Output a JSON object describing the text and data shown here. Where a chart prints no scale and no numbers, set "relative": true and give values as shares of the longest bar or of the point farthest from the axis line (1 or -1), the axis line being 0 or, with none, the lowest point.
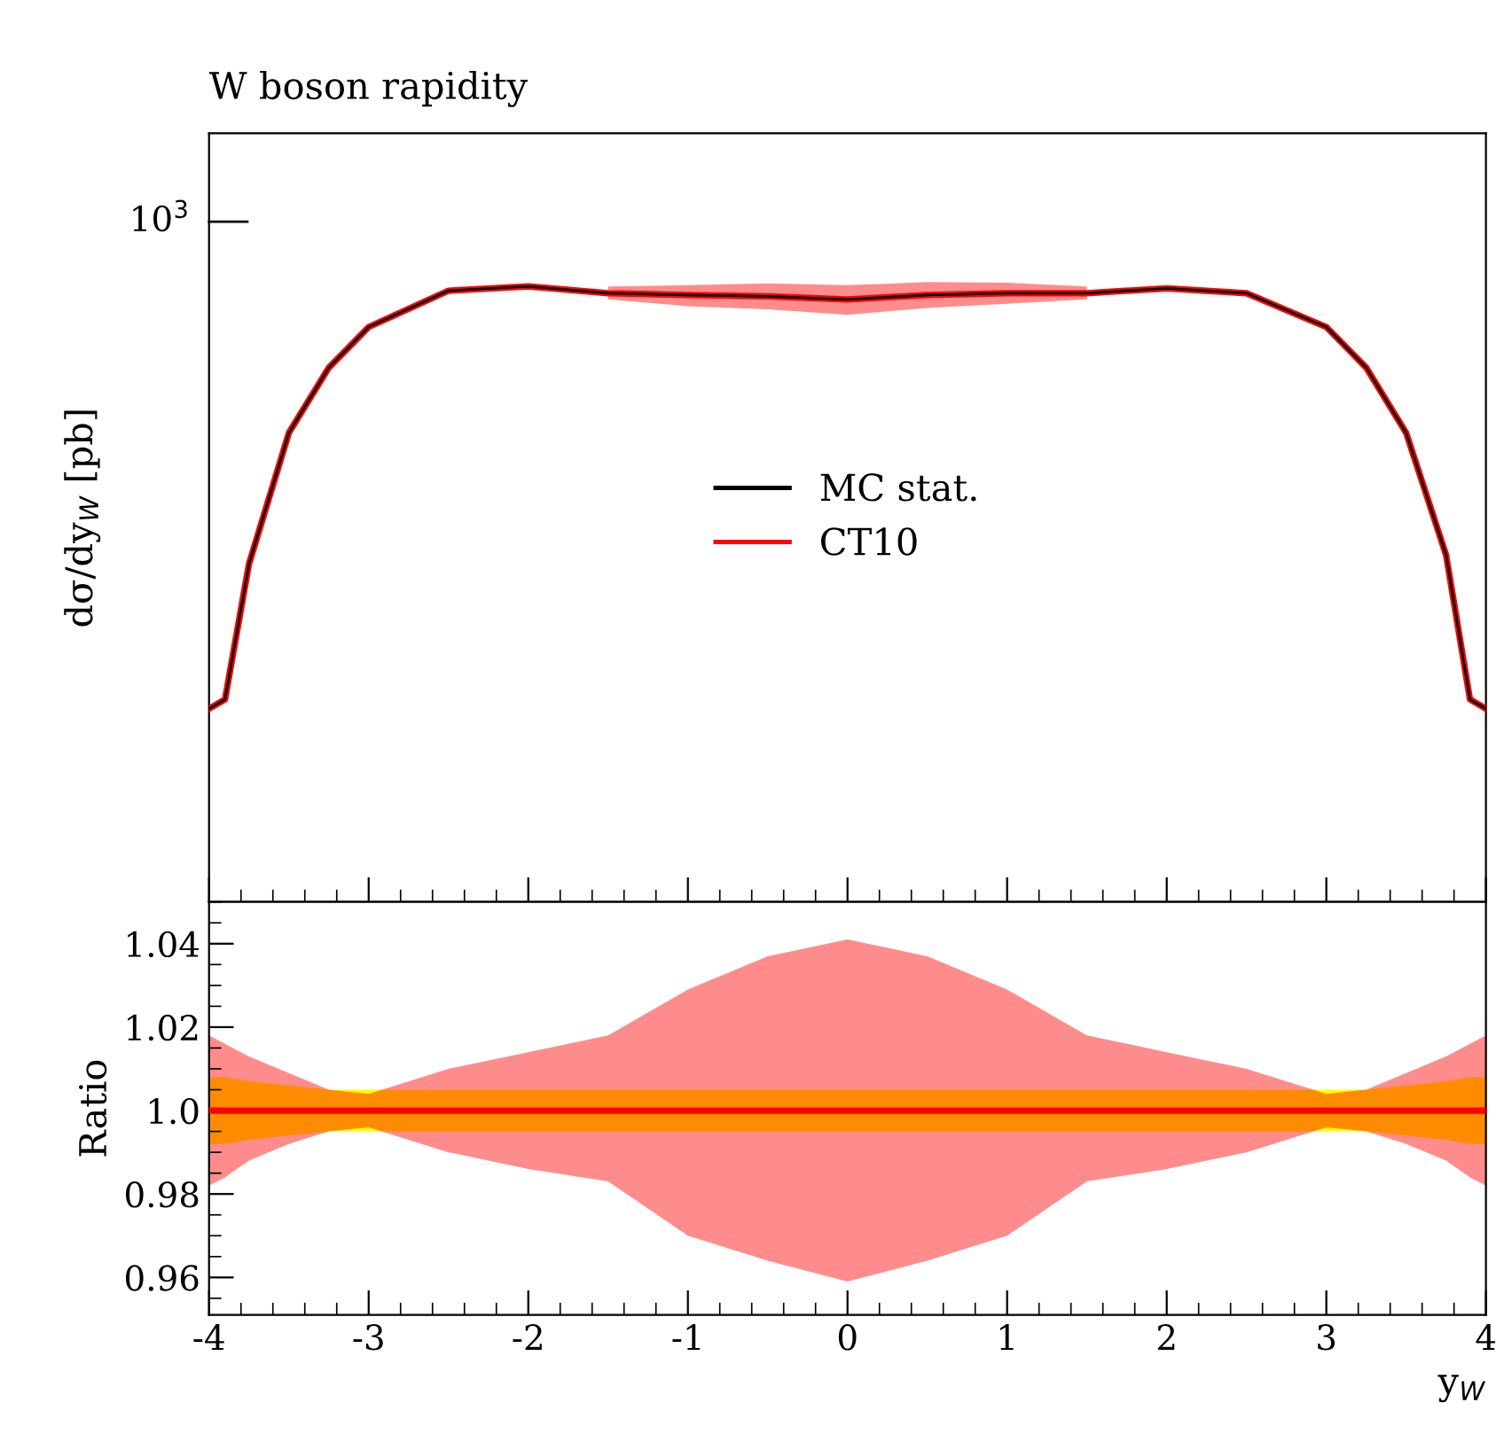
{
  "chart_data": [
    {
      "type": "line",
      "title": "W boson rapidity",
      "ylabel": "dσ/dy$_{W}$ [pb]",
      "relative": true,
      "xlim": [
        -4,
        4
      ],
      "xticks": [
        -4,
        -3,
        -2,
        -1,
        0,
        1,
        2,
        3,
        4
      ],
      "tick_labels": false,
      "grid": false,
      "legend": "center",
      "marker": "none",
      "line_style": "solid",
      "annotations": [
        "10$^{3}$"
      ],
      "x": [
        -4,
        -3.9,
        -3.75,
        -3.5,
        -3.25,
        -3,
        -2.5,
        -2,
        -1.5,
        -1,
        -0.5,
        0,
        0.5,
        1,
        1.5,
        2,
        2.5,
        3,
        3.25,
        3.5,
        3.75,
        3.9,
        4
      ],
      "series": [
        {
          "name": "MC stat.",
          "color": "#000000",
          "values": [
            0.314,
            0.329,
            0.549,
            0.762,
            0.868,
            0.934,
            0.993,
            1,
            0.989,
            0.986,
            0.984,
            0.979,
            0.986,
            0.989,
            0.989,
            0.997,
            0.989,
            0.934,
            0.868,
            0.762,
            0.564,
            0.329,
            0.314
          ]
        },
        {
          "name": "CT10",
          "color": "#ff0000",
          "values": [
            0.314,
            0.329,
            0.549,
            0.762,
            0.868,
            0.934,
            0.993,
            1,
            0.989,
            0.986,
            0.984,
            0.979,
            0.986,
            0.989,
            0.989,
            0.997,
            0.989,
            0.934,
            0.868,
            0.762,
            0.564,
            0.329,
            0.314
          ],
          "upper": [
            null,
            null,
            null,
            null,
            null,
            null,
            null,
            null,
            1,
            1.002,
            1.005,
            1.002,
            1.007,
            1.006,
            1,
            null,
            null,
            null,
            null,
            null,
            null,
            null,
            null
          ],
          "lower": [
            null,
            null,
            null,
            null,
            null,
            null,
            null,
            null,
            0.979,
            0.968,
            0.963,
            0.954,
            0.965,
            0.972,
            0.979,
            null,
            null,
            null,
            null,
            null,
            null,
            null,
            null
          ]
        }
      ]
    },
    {
      "type": "line",
      "xlabel": "y$_{W}$",
      "ylabel": "Ratio",
      "xlim": [
        -4,
        4
      ],
      "xticks": [
        -4,
        -3,
        -2,
        -1,
        0,
        1,
        2,
        3,
        4
      ],
      "ylim": [
        0.951,
        1.05
      ],
      "yticks": [
        0.96,
        0.98,
        {
          "value": 1,
          "label": "1.0"
        },
        1.02,
        1.04
      ],
      "grid": false,
      "marker": "none",
      "line_style": "solid",
      "x": [
        -4,
        -3.9,
        -3.75,
        -3.5,
        -3.25,
        -3,
        -2.5,
        -2,
        -1.5,
        -1,
        -0.5,
        0,
        0.5,
        1,
        1.5,
        2,
        2.5,
        3,
        3.25,
        3.5,
        3.75,
        3.9,
        4
      ],
      "series": [
        {
          "color": "#ffff00",
          "values": [
            null,
            null,
            null,
            null,
            null,
            null,
            null,
            null,
            null,
            null,
            null,
            null,
            null,
            null,
            null,
            null,
            null,
            null,
            null,
            null,
            null,
            null,
            null
          ],
          "upper": [
            1.008,
            1.008,
            1.007,
            1.006,
            1.005,
            1.005,
            1.005,
            1.005,
            1.005,
            1.005,
            1.005,
            1.005,
            1.005,
            1.005,
            1.005,
            1.005,
            1.005,
            1.005,
            1.005,
            1.006,
            1.007,
            1.008,
            1.008
          ],
          "lower": [
            0.992,
            0.992,
            0.993,
            0.994,
            0.995,
            0.995,
            0.995,
            0.995,
            0.995,
            0.995,
            0.995,
            0.995,
            0.995,
            0.995,
            0.995,
            0.995,
            0.995,
            0.995,
            0.995,
            0.994,
            0.993,
            0.992,
            0.992
          ]
        },
        {
          "color": "#ff0000",
          "values": [
            1,
            1,
            1,
            1,
            1,
            1,
            1,
            1,
            1,
            1,
            1,
            1,
            1,
            1,
            1,
            1,
            1,
            1,
            1,
            1,
            1,
            1,
            1
          ],
          "upper": [
            1.018,
            1.016,
            1.013,
            1.009,
            1.005,
            1.004,
            1.01,
            1.014,
            1.018,
            1.029,
            1.037,
            1.041,
            1.037,
            1.029,
            1.018,
            1.014,
            1.01,
            1.004,
            1.005,
            1.009,
            1.013,
            1.016,
            1.018
          ],
          "lower": [
            0.982,
            0.984,
            0.988,
            0.992,
            0.995,
            0.996,
            0.99,
            0.986,
            0.983,
            0.97,
            0.964,
            0.959,
            0.964,
            0.97,
            0.983,
            0.986,
            0.99,
            0.996,
            0.995,
            0.992,
            0.988,
            0.984,
            0.982
          ]
        }
      ]
    }
  ]
}
